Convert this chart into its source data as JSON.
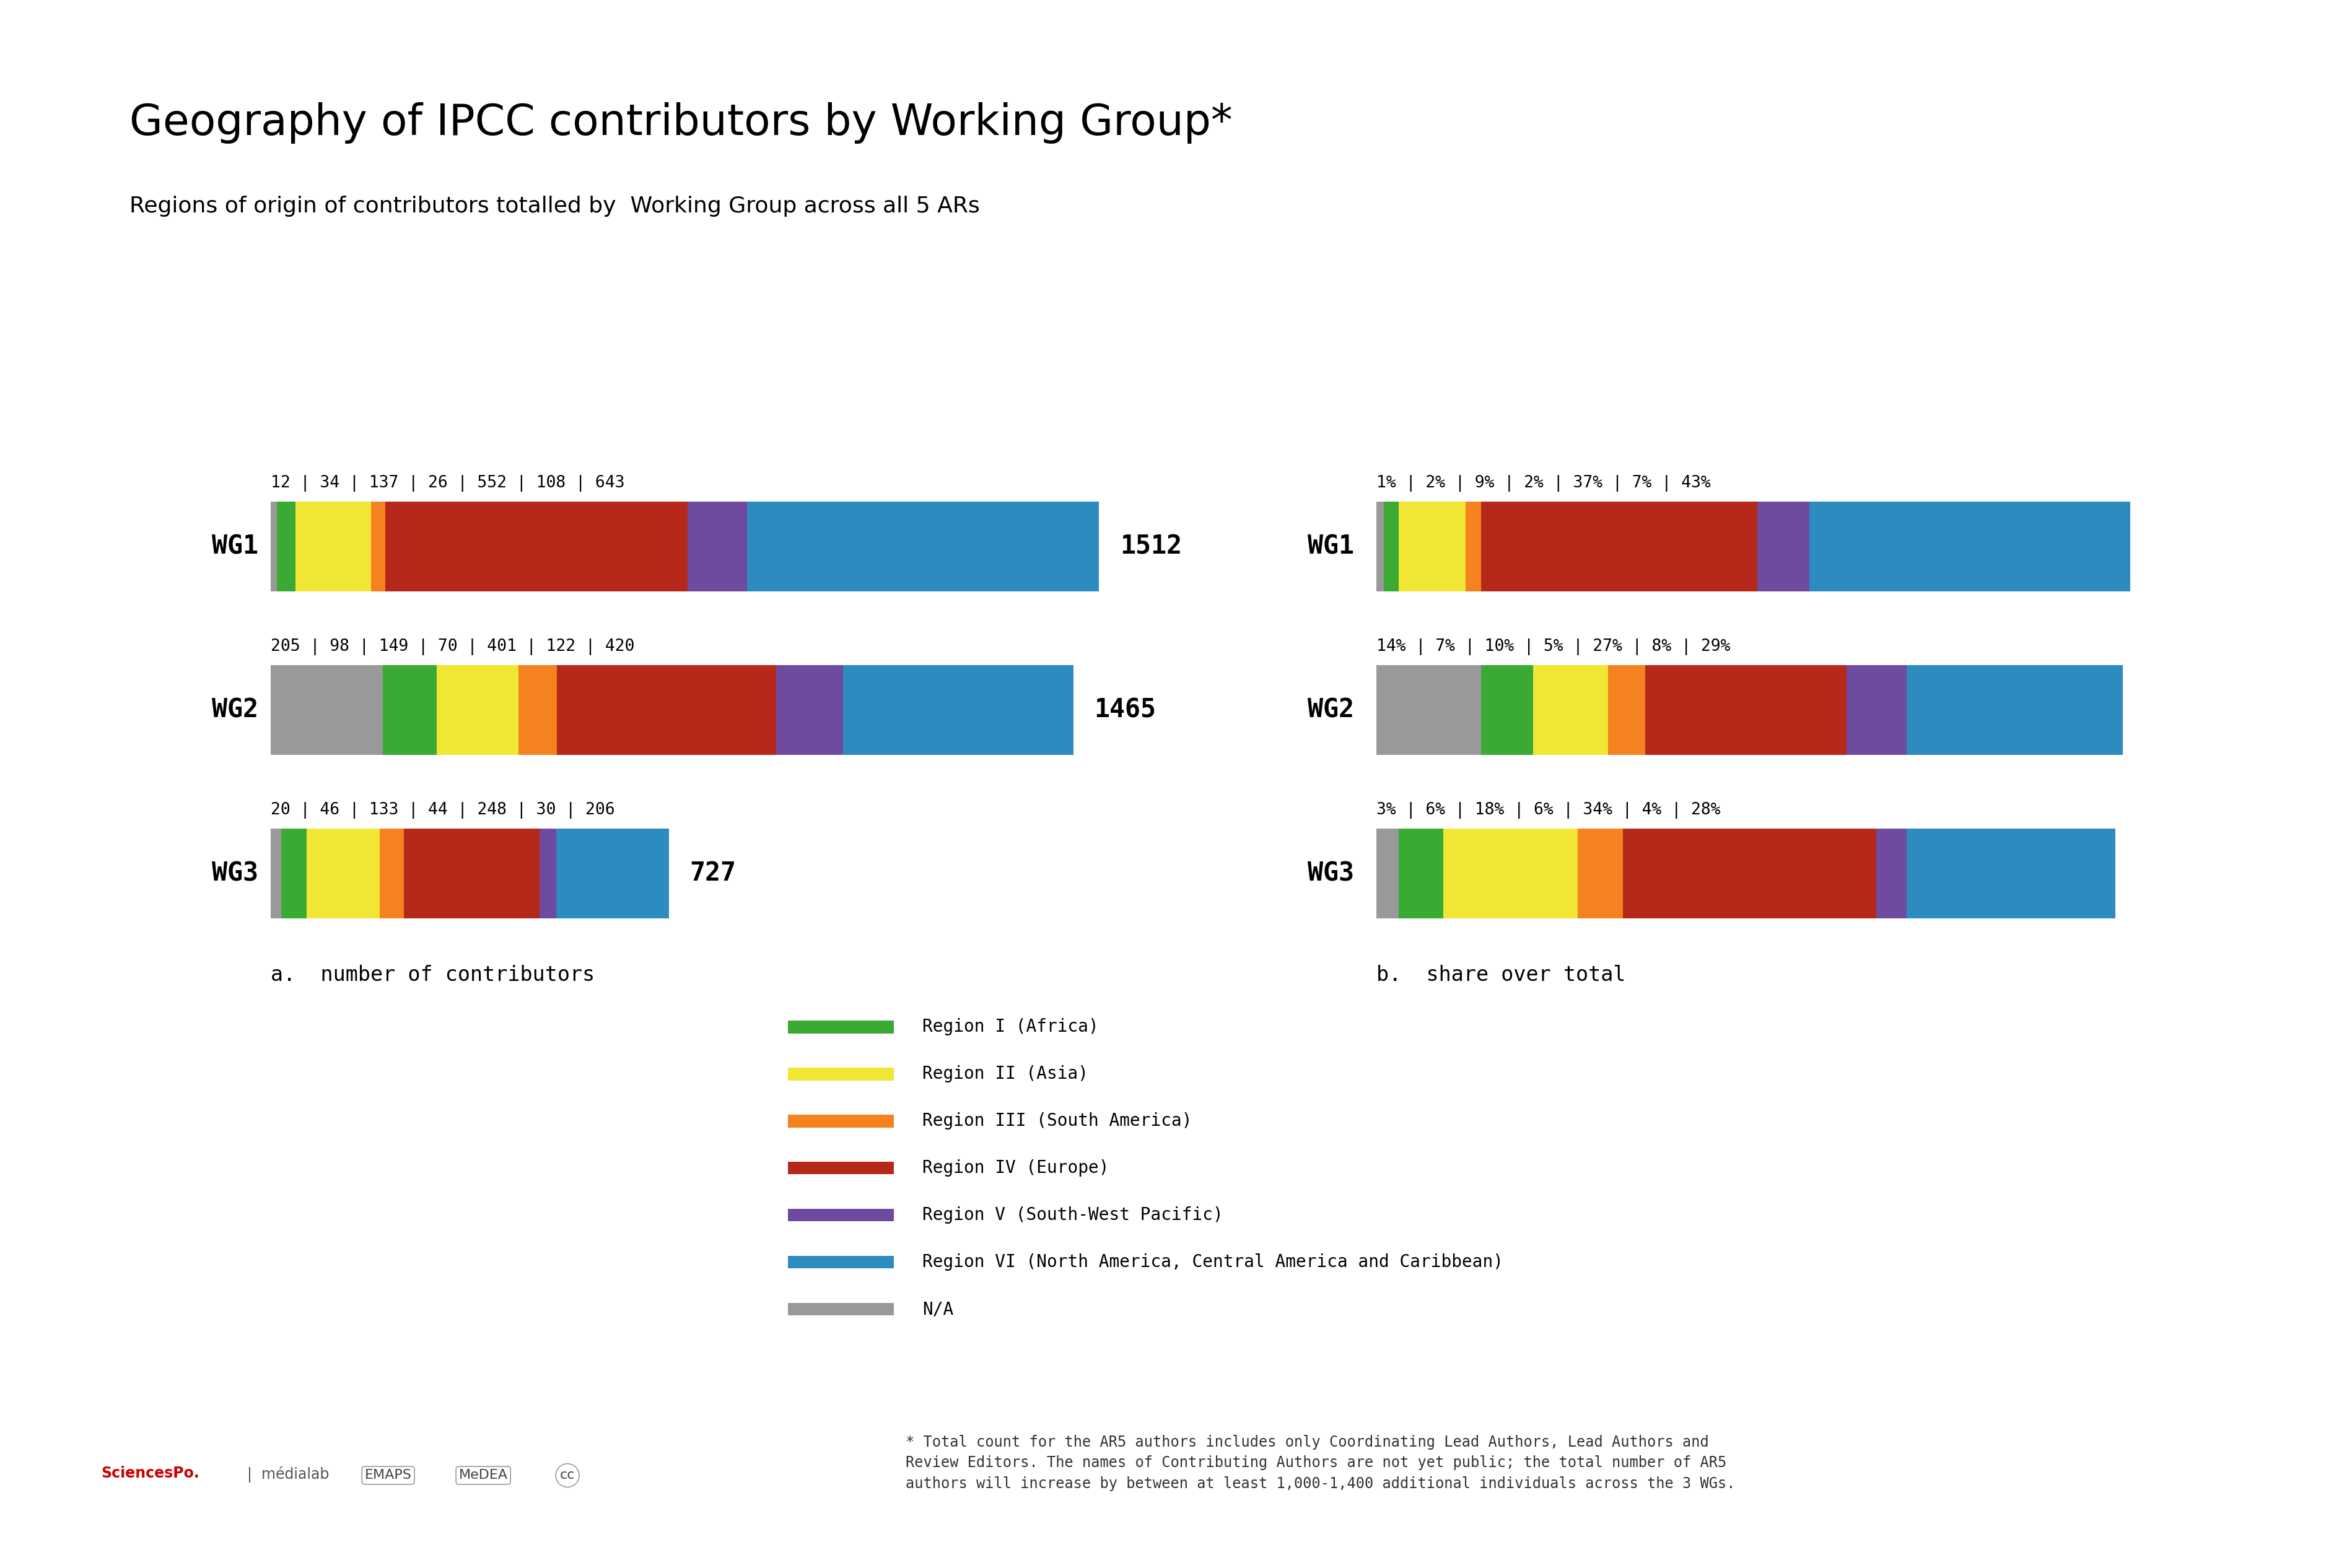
{
  "title": "Geography of IPCC contributors by Working Group*",
  "subtitle": "Regions of origin of contributors totalled by  Working Group across all 5 ARs",
  "wg_labels": [
    "WG1",
    "WG2",
    "WG3"
  ],
  "colors": [
    "#999999",
    "#3aaa35",
    "#f0e633",
    "#f4831f",
    "#b5281a",
    "#6e4b9e",
    "#2e8bc0"
  ],
  "wg1_counts": [
    12,
    34,
    137,
    26,
    552,
    108,
    643
  ],
  "wg2_counts": [
    205,
    98,
    149,
    70,
    401,
    122,
    420
  ],
  "wg3_counts": [
    20,
    46,
    133,
    44,
    248,
    30,
    206
  ],
  "wg1_total": 1512,
  "wg2_total": 1465,
  "wg3_total": 727,
  "wg1_pcts_vals": [
    1,
    2,
    9,
    2,
    37,
    7,
    43
  ],
  "wg2_pcts_vals": [
    14,
    7,
    10,
    5,
    27,
    8,
    29
  ],
  "wg3_pcts_vals": [
    3,
    6,
    18,
    6,
    34,
    4,
    28
  ],
  "wg1_count_label": "12 | 34 | 137 | 26 | 552 | 108 | 643",
  "wg2_count_label": "205 | 98 | 149 | 70 | 401 | 122 | 420",
  "wg3_count_label": "20 | 46 | 133 | 44 | 248 | 30 | 206",
  "wg1_pct_label": "1% | 2% | 9% | 2% | 37% | 7% | 43%",
  "wg2_pct_label": "14% | 7% | 10% | 5% | 27% | 8% | 29%",
  "wg3_pct_label": "3% | 6% | 18% | 6% | 34% | 4% | 28%",
  "label_a": "a.  number of contributors",
  "label_b": "b.  share over total",
  "legend_labels": [
    "Region I (Africa)",
    "Region II (Asia)",
    "Region III (South America)",
    "Region IV (Europe)",
    "Region V (South-West Pacific)",
    "Region VI (North America, Central America and Caribbean)",
    "N/A"
  ],
  "legend_colors": [
    "#3aaa35",
    "#f0e633",
    "#f4831f",
    "#b5281a",
    "#6e4b9e",
    "#2e8bc0",
    "#999999"
  ],
  "footnote": "* Total count for the AR5 authors includes only Coordinating Lead Authors, Lead Authors and\nReview Editors. The names of Contributing Authors are not yet public; the total number of AR5\nauthors will increase by between at least 1,000-1,400 additional individuals across the 3 WGs.",
  "background_color": "#ffffff"
}
